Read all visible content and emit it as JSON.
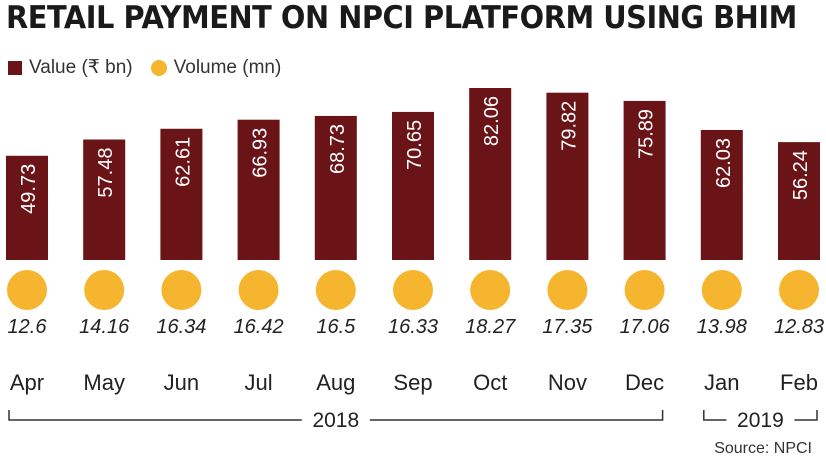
{
  "title": "RETAIL PAYMENT ON NPCI PLATFORM USING BHIM",
  "legend": {
    "value_label": "Value (₹ bn)",
    "volume_label": "Volume (mn)"
  },
  "source": "Source: NPCI",
  "colors": {
    "bar": "#6b1418",
    "dot": "#f5b52e",
    "text": "#222222"
  },
  "chart_data": {
    "type": "bar",
    "title": "RETAIL PAYMENT ON NPCI PLATFORM USING BHIM",
    "categories": [
      "Apr",
      "May",
      "Jun",
      "Jul",
      "Aug",
      "Sep",
      "Oct",
      "Nov",
      "Dec",
      "Jan",
      "Feb"
    ],
    "series": [
      {
        "name": "Value (₹ bn)",
        "values": [
          49.73,
          57.48,
          62.61,
          66.93,
          68.73,
          70.65,
          82.06,
          79.82,
          75.89,
          62.03,
          56.24
        ]
      },
      {
        "name": "Volume (mn)",
        "values": [
          12.6,
          14.16,
          16.34,
          16.42,
          16.5,
          16.33,
          18.27,
          17.35,
          17.06,
          13.98,
          12.83
        ]
      }
    ],
    "year_groups": [
      {
        "label": "2018",
        "start": 0,
        "end": 8
      },
      {
        "label": "2019",
        "start": 9,
        "end": 10
      }
    ],
    "value_labels_format": [
      "49.73",
      "57.48",
      "62.61",
      "66.93",
      "68.73",
      "70.65",
      "82.06",
      "79.82",
      "75.89",
      "62.03",
      "56.24"
    ],
    "volume_labels_format": [
      "12.6",
      "14.16",
      "16.34",
      "16.42",
      "16.5",
      "16.33",
      "18.27",
      "17.35",
      "17.06",
      "13.98",
      "12.83"
    ]
  }
}
